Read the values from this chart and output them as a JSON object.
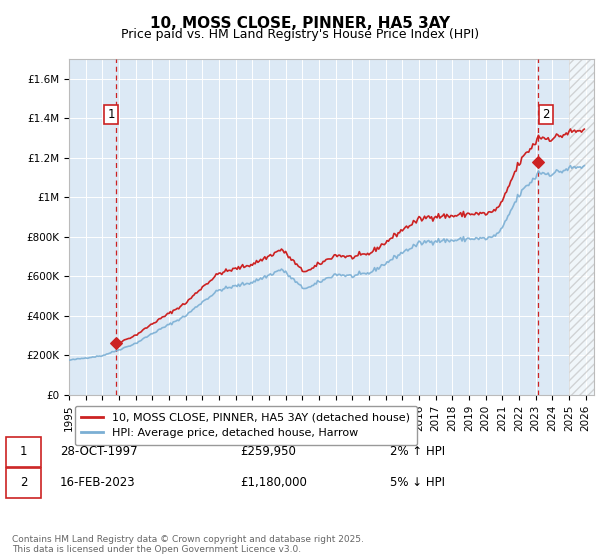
{
  "title": "10, MOSS CLOSE, PINNER, HA5 3AY",
  "subtitle": "Price paid vs. HM Land Registry's House Price Index (HPI)",
  "ylabel_ticks": [
    "£0",
    "£200K",
    "£400K",
    "£600K",
    "£800K",
    "£1M",
    "£1.2M",
    "£1.4M",
    "£1.6M"
  ],
  "ytick_values": [
    0,
    200000,
    400000,
    600000,
    800000,
    1000000,
    1200000,
    1400000,
    1600000
  ],
  "ylim": [
    0,
    1700000
  ],
  "xlim_start": 1995.0,
  "xlim_end": 2026.5,
  "x_years": [
    1995,
    1996,
    1997,
    1998,
    1999,
    2000,
    2001,
    2002,
    2003,
    2004,
    2005,
    2006,
    2007,
    2008,
    2009,
    2010,
    2011,
    2012,
    2013,
    2014,
    2015,
    2016,
    2017,
    2018,
    2019,
    2020,
    2021,
    2022,
    2023,
    2024,
    2025,
    2026
  ],
  "hpi_line_color": "#7bafd4",
  "price_line_color": "#cc2222",
  "dot_color": "#cc2222",
  "vline_color": "#cc2222",
  "plot_bg": "#dce9f5",
  "grid_color": "#ffffff",
  "hatch_color": "#aaaaaa",
  "legend_label1": "10, MOSS CLOSE, PINNER, HA5 3AY (detached house)",
  "legend_label2": "HPI: Average price, detached house, Harrow",
  "table_row1": [
    "1",
    "28-OCT-1997",
    "£259,950",
    "2% ↑ HPI"
  ],
  "table_row2": [
    "2",
    "16-FEB-2023",
    "£1,180,000",
    "5% ↓ HPI"
  ],
  "footnote": "Contains HM Land Registry data © Crown copyright and database right 2025.\nThis data is licensed under the Open Government Licence v3.0.",
  "sale1_x": 1997.83,
  "sale1_y": 259950,
  "sale2_x": 2023.12,
  "sale2_y": 1180000,
  "title_fontsize": 11,
  "subtitle_fontsize": 9,
  "tick_fontsize": 7.5,
  "legend_fontsize": 8,
  "table_fontsize": 8.5,
  "footnote_fontsize": 6.5
}
